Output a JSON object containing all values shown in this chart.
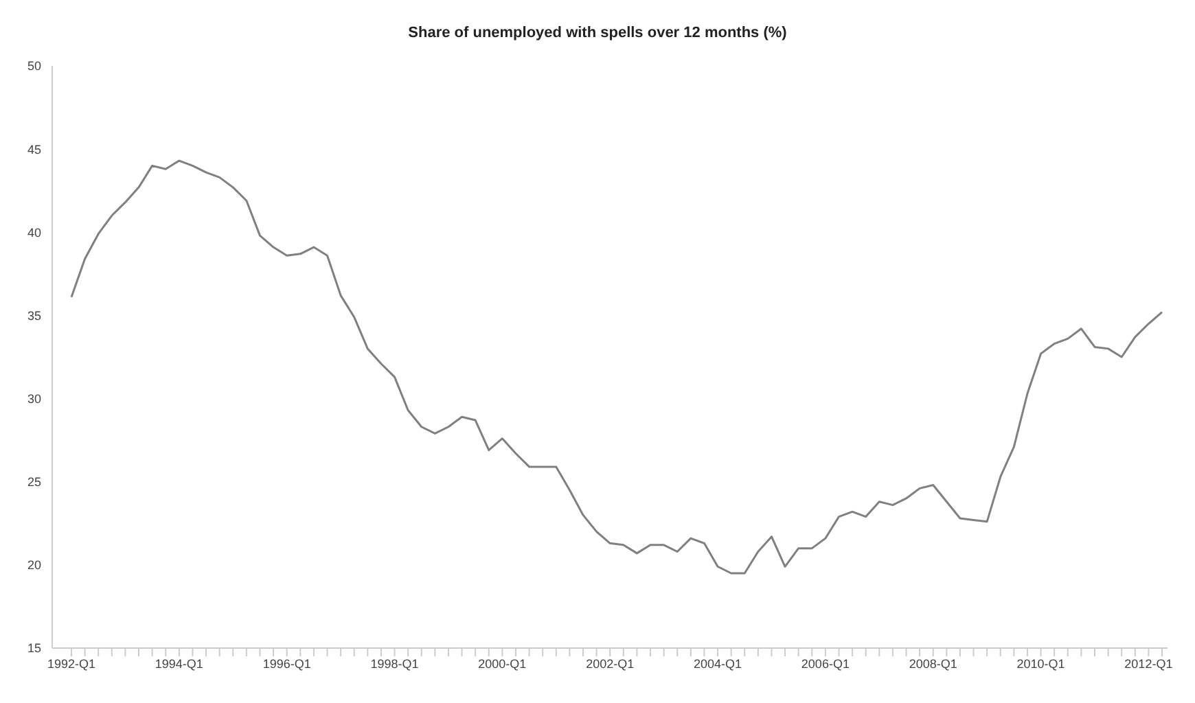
{
  "chart_data": {
    "type": "line",
    "title": "Share of unemployed with spells over 12 months (%)",
    "categories": [
      "1992-Q1",
      null,
      null,
      null,
      null,
      null,
      null,
      null,
      "1994-Q1",
      null,
      null,
      null,
      null,
      null,
      null,
      null,
      "1996-Q1",
      null,
      null,
      null,
      null,
      null,
      null,
      null,
      "1998-Q1",
      null,
      null,
      null,
      null,
      null,
      null,
      null,
      "2000-Q1",
      null,
      null,
      null,
      null,
      null,
      null,
      null,
      "2002-Q1",
      null,
      null,
      null,
      null,
      null,
      null,
      null,
      "2004-Q1",
      null,
      null,
      null,
      null,
      null,
      null,
      null,
      "2006-Q1",
      null,
      null,
      null,
      null,
      null,
      null,
      null,
      "2008-Q1",
      null,
      null,
      null,
      null,
      null,
      null,
      null,
      "2010-Q1",
      null,
      null,
      null,
      null,
      null,
      null,
      null,
      "2012-Q1",
      null
    ],
    "series": [
      {
        "color": "#808080",
        "values": [
          36.1,
          38.4,
          39.9,
          41.0,
          41.8,
          42.7,
          44.0,
          43.8,
          44.3,
          44.0,
          43.6,
          43.3,
          42.7,
          41.9,
          39.8,
          39.1,
          38.6,
          38.7,
          39.1,
          38.6,
          36.2,
          34.9,
          33.0,
          32.1,
          31.3,
          29.3,
          28.3,
          27.9,
          28.3,
          28.9,
          28.7,
          26.9,
          27.6,
          26.7,
          25.9,
          25.9,
          25.9,
          24.5,
          23.0,
          22.0,
          21.3,
          21.2,
          20.7,
          21.2,
          21.2,
          20.8,
          21.6,
          21.3,
          19.9,
          19.5,
          19.5,
          20.8,
          21.7,
          19.9,
          21.0,
          21.0,
          21.6,
          22.9,
          23.2,
          22.9,
          23.8,
          23.6,
          24.0,
          24.6,
          24.8,
          23.8,
          22.8,
          22.7,
          22.6,
          25.3,
          27.1,
          30.3,
          32.7,
          33.3,
          33.6,
          34.2,
          33.1,
          33.0,
          32.5,
          33.7,
          34.5,
          35.2
        ]
      }
    ],
    "ylim": [
      15,
      50
    ],
    "yticks": [
      15,
      20,
      25,
      30,
      35,
      40,
      45,
      50
    ],
    "grid": false,
    "legend": false,
    "marker": "none",
    "line_style": "solid"
  }
}
